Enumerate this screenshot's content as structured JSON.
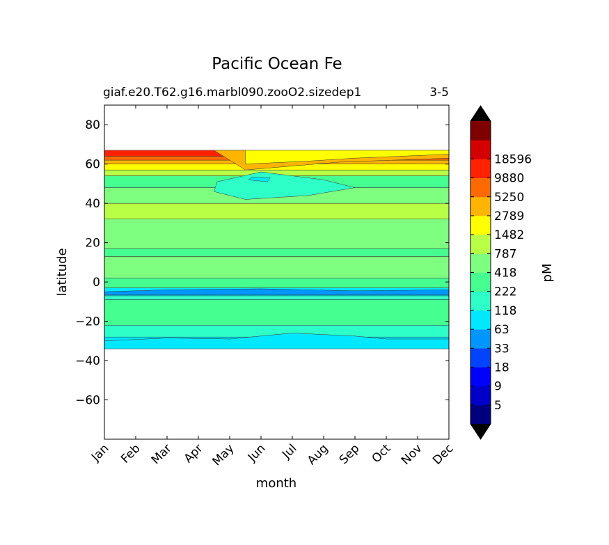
{
  "chart_data": {
    "type": "contourf",
    "title": "Pacific Ocean Fe",
    "subtitle_left": "giaf.e20.T62.g16.marbl090.zooO2.sizedep1",
    "subtitle_right": "3-5",
    "xlabel": "month",
    "ylabel": "latitude",
    "x_tick_labels": [
      "Jan",
      "Feb",
      "Mar",
      "Apr",
      "May",
      "Jun",
      "Jul",
      "Aug",
      "Sep",
      "Oct",
      "Nov",
      "Dec"
    ],
    "xlim": [
      1,
      12
    ],
    "ylim": [
      -80,
      90
    ],
    "y_ticks": [
      -60,
      -40,
      -20,
      0,
      20,
      40,
      60,
      80
    ],
    "data_lat_range": [
      -34,
      67
    ],
    "colorbar": {
      "label": "pM",
      "tick_labels": [
        "5",
        "9",
        "18",
        "33",
        "63",
        "118",
        "222",
        "418",
        "787",
        "1482",
        "2789",
        "5250",
        "9880",
        "18596"
      ],
      "colors": [
        "#00007f",
        "#0000c8",
        "#0000ff",
        "#0044ff",
        "#0096ff",
        "#00e8ff",
        "#2effc8",
        "#46ff91",
        "#7fff7f",
        "#b9ff46",
        "#ffff00",
        "#ffb400",
        "#ff6a00",
        "#ff2200",
        "#d40000",
        "#7f0000"
      ],
      "under_color": "#000000",
      "over_color": "#000000",
      "extend": "both"
    },
    "bands": [
      {
        "lat_min": -34,
        "lat_max": -28,
        "level": 5
      },
      {
        "lat_min": -28,
        "lat_max": -22,
        "level": 6
      },
      {
        "lat_min": -22,
        "lat_max": -9,
        "level": 7
      },
      {
        "lat_min": -9,
        "lat_max": -7,
        "level": 6
      },
      {
        "lat_min": -7,
        "lat_max": -3,
        "level": 5
      },
      {
        "lat_min": -3,
        "lat_max": 2,
        "level": 7
      },
      {
        "lat_min": 2,
        "lat_max": 13,
        "level": 8
      },
      {
        "lat_min": 13,
        "lat_max": 17,
        "level": 7
      },
      {
        "lat_min": 17,
        "lat_max": 32,
        "level": 8
      },
      {
        "lat_min": 32,
        "lat_max": 40,
        "level": 9
      },
      {
        "lat_min": 40,
        "lat_max": 48,
        "level": 8
      },
      {
        "lat_min": 48,
        "lat_max": 54,
        "level": 7
      },
      {
        "lat_min": 54,
        "lat_max": 57,
        "level": 9
      },
      {
        "lat_min": 57,
        "lat_max": 60,
        "level": 10
      },
      {
        "lat_min": 60,
        "lat_max": 62,
        "level": 11
      },
      {
        "lat_min": 62,
        "lat_max": 64,
        "level": 12
      },
      {
        "lat_min": 64,
        "lat_max": 67,
        "level": 13
      }
    ],
    "patches": [
      {
        "x": [
          4.5,
          5.5,
          7.5,
          9.0,
          8.0,
          6.0,
          4.6
        ],
        "y": [
          46,
          42,
          44,
          48,
          52,
          56,
          51
        ],
        "level": 6
      },
      {
        "x": [
          5.6,
          6.2,
          6.3,
          5.7
        ],
        "y": [
          52,
          51,
          53,
          53.5
        ],
        "level": 5
      },
      {
        "x": [
          1.0,
          3.0,
          5.0,
          7.0,
          9.0,
          10.0,
          12.0,
          12.0,
          1.0
        ],
        "y": [
          -30,
          -28.5,
          -29,
          -26,
          -27.5,
          -29,
          -29,
          -34,
          -34
        ],
        "level": 5
      },
      {
        "x": [
          1.0,
          3.0,
          6.0,
          9.0,
          12.0,
          12.0,
          1.0
        ],
        "y": [
          -5,
          -4,
          -3.5,
          -4.5,
          -4,
          -6.5,
          -6.5
        ],
        "level": 4
      },
      {
        "x": [
          5.5,
          7.0,
          8.5,
          12.0,
          12.0,
          4.5
        ],
        "y": [
          57,
          59,
          61,
          63,
          67,
          67
        ],
        "level": 11
      },
      {
        "x": [
          5.5,
          7.5,
          9.0,
          10.5,
          12.0,
          12.0,
          5.5
        ],
        "y": [
          60,
          61.5,
          63,
          64,
          65,
          67,
          67
        ],
        "level": 10
      }
    ]
  }
}
